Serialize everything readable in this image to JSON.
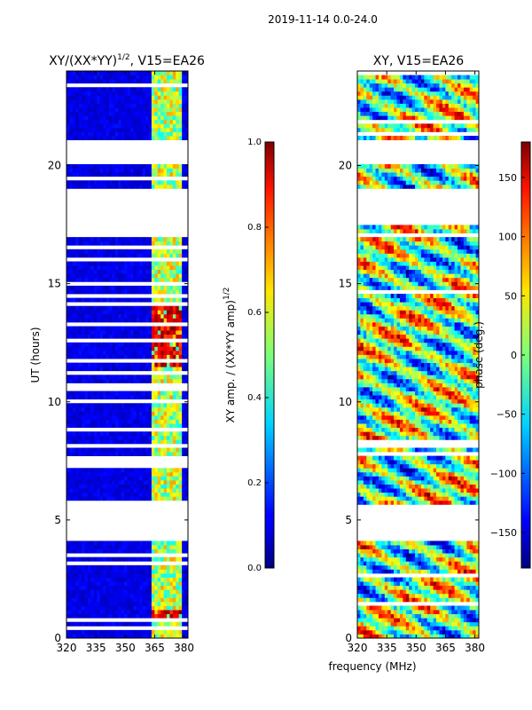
{
  "suptitle": "2019-11-14 0.0-24.0",
  "xlabel_shared": "frequency (MHz)",
  "chart_data": [
    {
      "type": "heatmap",
      "title_main": "XY/(XX*YY)",
      "title_exp": "1/2",
      "title_tail": ", V15=EA26",
      "ylabel": "UT (hours)",
      "xlim": [
        320,
        382
      ],
      "ylim": [
        0,
        24
      ],
      "xticks": [
        320,
        335,
        350,
        365,
        380
      ],
      "yticks": [
        0,
        5,
        10,
        15,
        20
      ],
      "time_gaps": [
        [
          4.1,
          5.7
        ],
        [
          17.5,
          19.0
        ],
        [
          20.0,
          21.0
        ]
      ],
      "band_freq_range": [
        363.0,
        379.0
      ],
      "band_value": 0.55,
      "hot_periods": [
        [
          0.8,
          1.2
        ],
        [
          11.5,
          14.2
        ]
      ],
      "hot_value": 0.9,
      "background_value": 0.1
    },
    {
      "type": "heatmap",
      "title": "XY, V15=EA26",
      "xlim": [
        320,
        382
      ],
      "ylim": [
        0,
        24
      ],
      "xticks": [
        320,
        335,
        350,
        365,
        380
      ],
      "yticks": [
        0,
        5,
        10,
        15,
        20
      ],
      "time_gaps": [
        [
          4.1,
          5.7
        ],
        [
          17.5,
          19.0
        ],
        [
          20.0,
          21.0
        ]
      ],
      "value_range": [
        -180,
        180
      ]
    }
  ],
  "colorbars": [
    {
      "label_main": "XY amp. / (XX*YY amp)",
      "label_exp": "1/2",
      "range": [
        0.0,
        1.0
      ],
      "ticks": [
        "0.0",
        "0.2",
        "0.4",
        "0.6",
        "0.8",
        "1.0"
      ]
    },
    {
      "label": "phase (deg.)",
      "range": [
        -180,
        180
      ],
      "ticks": [
        "−150",
        "−100",
        "−50",
        "0",
        "50",
        "100",
        "150"
      ],
      "tick_values": [
        -150,
        -100,
        -50,
        0,
        50,
        100,
        150
      ]
    }
  ]
}
